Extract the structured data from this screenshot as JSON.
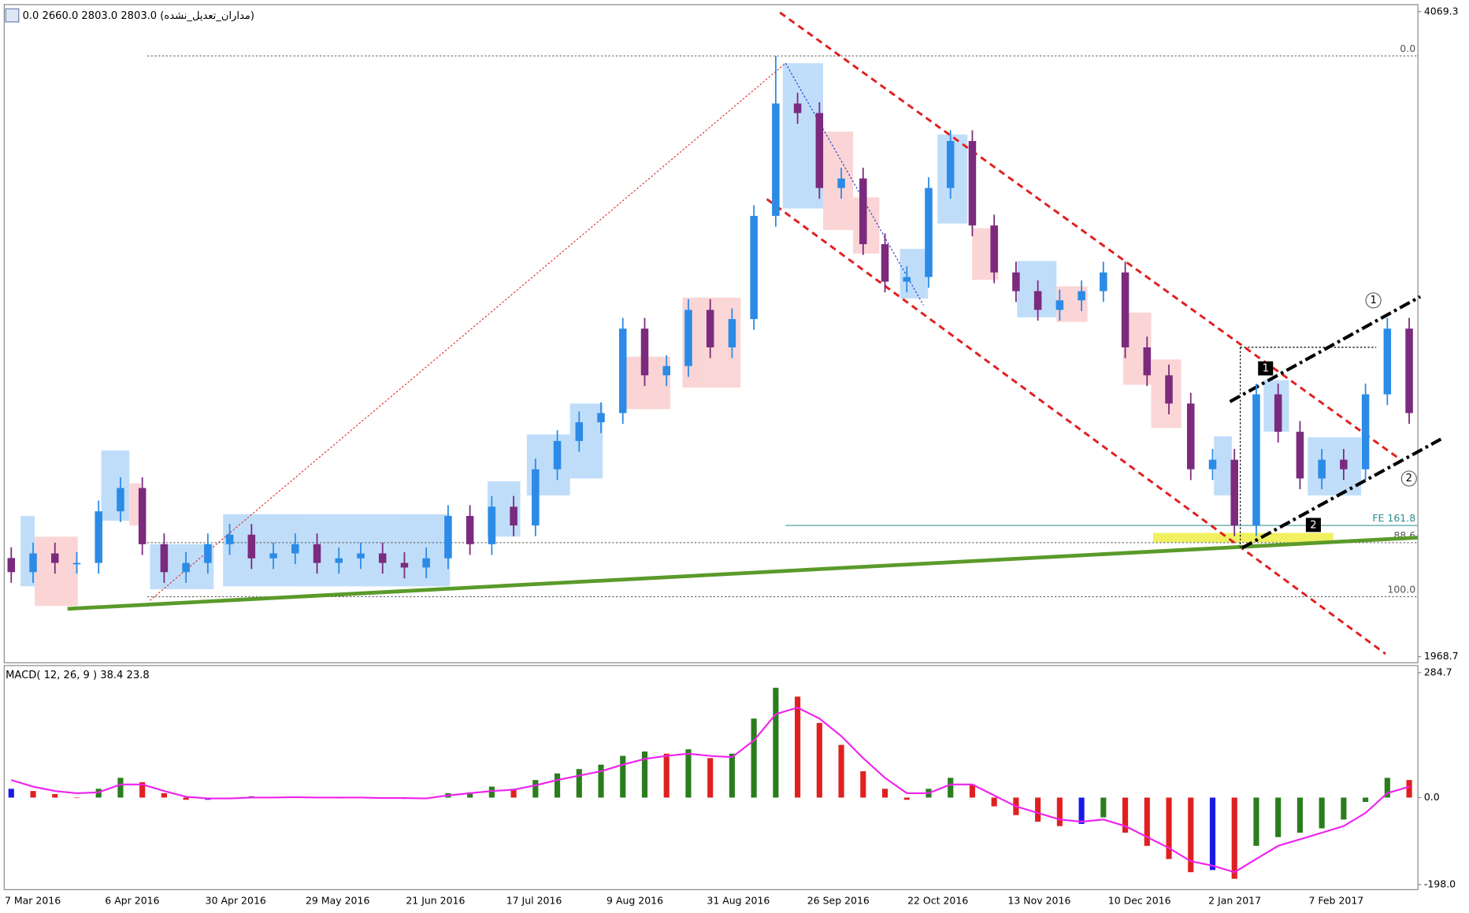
{
  "chart_data": [
    {
      "type": "candlestick",
      "title": "0.0 2660.0 2803.0 2803.0 (مداران_تعدیل_نشده)",
      "ylim": [
        1968.7,
        4069.3
      ],
      "yticks": [
        1968.7,
        4069.3
      ],
      "colors": {
        "up": "#2b8be6",
        "down": "#7b2a7e"
      },
      "open": [
        2290,
        2244,
        2305,
        2274,
        2274,
        2442,
        2518,
        2335,
        2244,
        2274,
        2335,
        2366,
        2289,
        2305,
        2335,
        2274,
        2289,
        2305,
        2274,
        2259,
        2289,
        2427,
        2335,
        2457,
        2396,
        2579,
        2671,
        2732,
        2762,
        3037,
        2885,
        2915,
        3098,
        2976,
        3068,
        3404,
        3770,
        3739,
        3495,
        3526,
        3312,
        3190,
        3205,
        3495,
        3648,
        3373,
        3220,
        3159,
        3098,
        3129,
        3159,
        3220,
        2976,
        2885,
        2793,
        2579,
        2610,
        2396,
        2823,
        2701,
        2549,
        2610,
        2579,
        2823,
        3037
      ],
      "high": [
        2325,
        2340,
        2340,
        2309,
        2477,
        2553,
        2553,
        2370,
        2309,
        2370,
        2401,
        2401,
        2340,
        2370,
        2370,
        2324,
        2340,
        2340,
        2309,
        2324,
        2462,
        2462,
        2492,
        2492,
        2614,
        2706,
        2767,
        2797,
        3072,
        3072,
        2950,
        3133,
        3133,
        3103,
        3439,
        3925,
        3805,
        3774,
        3561,
        3561,
        3347,
        3240,
        3530,
        3683,
        3683,
        3408,
        3255,
        3194,
        3164,
        3194,
        3255,
        3255,
        3011,
        2920,
        2828,
        2645,
        2645,
        2858,
        2858,
        2736,
        2645,
        2645,
        2858,
        3072,
        3072
      ],
      "low": [
        2209,
        2209,
        2239,
        2239,
        2239,
        2407,
        2300,
        2209,
        2209,
        2239,
        2300,
        2254,
        2254,
        2270,
        2239,
        2239,
        2254,
        2239,
        2224,
        2224,
        2254,
        2300,
        2300,
        2361,
        2361,
        2544,
        2636,
        2697,
        2727,
        2850,
        2850,
        2880,
        2941,
        2941,
        3033,
        3369,
        3704,
        3460,
        3460,
        3277,
        3155,
        3155,
        3170,
        3460,
        3338,
        3185,
        3124,
        3063,
        3063,
        3094,
        3124,
        2941,
        2850,
        2758,
        2544,
        2544,
        2361,
        2361,
        2666,
        2514,
        2514,
        2544,
        2544,
        2788,
        2727
      ],
      "close": [
        2244,
        2305,
        2274,
        2274,
        2442,
        2518,
        2335,
        2244,
        2274,
        2335,
        2366,
        2289,
        2305,
        2335,
        2274,
        2289,
        2305,
        2274,
        2259,
        2289,
        2427,
        2335,
        2457,
        2396,
        2579,
        2671,
        2732,
        2762,
        3037,
        2885,
        2915,
        3098,
        2976,
        3068,
        3404,
        3770,
        3739,
        3495,
        3526,
        3312,
        3190,
        3205,
        3495,
        3648,
        3373,
        3220,
        3159,
        3098,
        3129,
        3159,
        3220,
        2976,
        2885,
        2793,
        2579,
        2610,
        2396,
        2823,
        2701,
        2549,
        2610,
        2579,
        2823,
        3037,
        2762
      ],
      "x_labels": [
        "7 Mar 2016",
        "6 Apr 2016",
        "30 Apr 2016",
        "29 May 2016",
        "21 Jun 2016",
        "17 Jul 2016",
        "9 Aug 2016",
        "31 Aug 2016",
        "26 Sep 2016",
        "22 Oct 2016",
        "13 Nov 2016",
        "10 Dec 2016",
        "2 Jan 2017",
        "7 Feb 2017"
      ],
      "levels": [
        {
          "value": 3925,
          "label": "0.0"
        },
        {
          "value": 2396,
          "label": "FE 161.8"
        },
        {
          "value": 2340,
          "label": "88.6"
        },
        {
          "value": 2164,
          "label": "100.0"
        }
      ],
      "level_colors": [
        "#555555",
        "#2a8a8a",
        "#555555",
        "#555555"
      ],
      "wave_labels": [
        "1",
        "2"
      ],
      "box_labels": [
        "1",
        "2"
      ]
    },
    {
      "type": "macd",
      "title": "MACD( 12, 26, 9 ) 38.4 23.8",
      "ylim": [
        -198,
        284.7
      ],
      "yticks": [
        {
          "value": -198,
          "label": "-198.0"
        },
        {
          "value": 0,
          "label": "0.0"
        },
        284.7
      ],
      "colors": {
        "up": "#2a7d1c",
        "down": "#e02020",
        "flat": "#1a1ae6",
        "signal": "#ee22ee"
      },
      "values": [
        20,
        15,
        8,
        0,
        20,
        45,
        35,
        10,
        -5,
        -5,
        0,
        3,
        0,
        2,
        0,
        -2,
        0,
        -1,
        -3,
        -2,
        10,
        12,
        25,
        20,
        40,
        55,
        65,
        75,
        95,
        105,
        100,
        110,
        90,
        100,
        180,
        250,
        230,
        170,
        120,
        60,
        20,
        -5,
        20,
        45,
        30,
        -20,
        -40,
        -55,
        -65,
        -60,
        -45,
        -80,
        -110,
        -140,
        -170,
        -165,
        -185,
        -110,
        -90,
        -80,
        -70,
        -50,
        -10,
        45,
        40
      ],
      "signal": [
        40,
        25,
        15,
        10,
        12,
        30,
        30,
        15,
        2,
        -2,
        -2,
        0,
        0,
        1,
        0,
        0,
        0,
        -1,
        -1,
        -2,
        5,
        10,
        15,
        18,
        28,
        40,
        50,
        60,
        75,
        88,
        95,
        100,
        95,
        92,
        130,
        190,
        205,
        180,
        140,
        90,
        45,
        10,
        10,
        30,
        30,
        5,
        -20,
        -35,
        -50,
        -55,
        -50,
        -65,
        -90,
        -115,
        -145,
        -155,
        -170,
        -140,
        -110,
        -95,
        -80,
        -65,
        -35,
        10,
        25
      ]
    }
  ]
}
